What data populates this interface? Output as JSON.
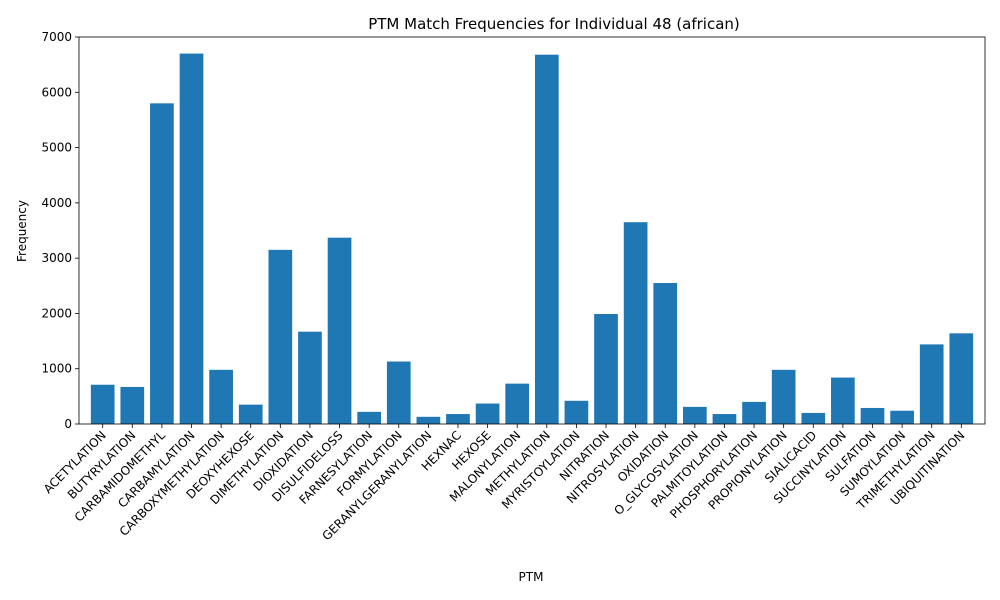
{
  "chart_data": {
    "type": "bar",
    "title": "PTM Match Frequencies for Individual 48 (african)",
    "xlabel": "PTM",
    "ylabel": "Frequency",
    "ylim": [
      0,
      7000
    ],
    "yticks": [
      0,
      1000,
      2000,
      3000,
      4000,
      5000,
      6000,
      7000
    ],
    "grid": false,
    "bar_color": "#1f77b4",
    "categories": [
      "ACETYLATION",
      "BUTYRYLATION",
      "CARBAMIDOMETHYL",
      "CARBAMYLATION",
      "CARBOXYMETHYLATION",
      "DEOXYHEXOSE",
      "DIMETHYLATION",
      "DIOXIDATION",
      "DISULFIDELOSS",
      "FARNESYLATION",
      "FORMYLATION",
      "GERANYLGERANYLATION",
      "HEXNAC",
      "HEXOSE",
      "MALONYLATION",
      "METHYLATION",
      "MYRISTOYLATION",
      "NITRATION",
      "NITROSYLATION",
      "OXIDATION",
      "O_GLYCOSYLATION",
      "PALMITOYLATION",
      "PHOSPHORYLATION",
      "PROPIONYLATION",
      "SIALICACID",
      "SUCCINYLATION",
      "SULFATION",
      "SUMOYLATION",
      "TRIMETHYLATION",
      "UBIQUITINATION"
    ],
    "values": [
      710,
      670,
      5800,
      6700,
      980,
      350,
      3150,
      1670,
      3370,
      220,
      1130,
      130,
      180,
      370,
      730,
      6680,
      420,
      1990,
      3650,
      2550,
      310,
      180,
      400,
      980,
      200,
      840,
      290,
      240,
      1440,
      1640
    ]
  }
}
